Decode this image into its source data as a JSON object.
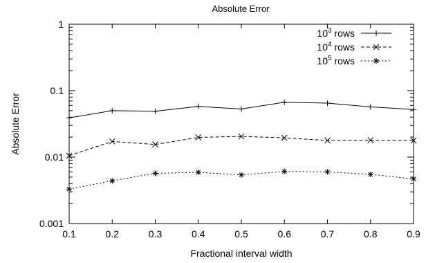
{
  "chart_data": {
    "type": "line",
    "title": "Absolute Error",
    "xlabel": "Fractional interval width",
    "ylabel": "Absolute Error",
    "xlim": [
      0.1,
      0.9
    ],
    "ylim": [
      0.001,
      1
    ],
    "y_scale": "log",
    "x_ticks": [
      "0.1",
      "0.2",
      "0.3",
      "0.4",
      "0.5",
      "0.6",
      "0.7",
      "0.8",
      "0.9"
    ],
    "y_ticks": [
      "0.001",
      "0.01",
      "0.1",
      "1"
    ],
    "grid": false,
    "legend_position": "top-right",
    "x": [
      0.1,
      0.2,
      0.3,
      0.4,
      0.5,
      0.6,
      0.7,
      0.8,
      0.9
    ],
    "series": [
      {
        "name_base": "10",
        "name_exp": "3",
        "name_suffix": " rows",
        "line_style": "solid",
        "marker": "plus",
        "values": [
          0.039,
          0.05,
          0.049,
          0.058,
          0.053,
          0.067,
          0.065,
          0.057,
          0.052
        ]
      },
      {
        "name_base": "10",
        "name_exp": "4",
        "name_suffix": " rows",
        "line_style": "dashed",
        "marker": "x",
        "values": [
          0.0105,
          0.0172,
          0.0155,
          0.0198,
          0.0205,
          0.0195,
          0.0178,
          0.018,
          0.0178
        ]
      },
      {
        "name_base": "10",
        "name_exp": "5",
        "name_suffix": " rows",
        "line_style": "dotted",
        "marker": "star",
        "values": [
          0.0033,
          0.0044,
          0.0057,
          0.0059,
          0.0054,
          0.0061,
          0.006,
          0.0055,
          0.0047
        ]
      }
    ]
  }
}
